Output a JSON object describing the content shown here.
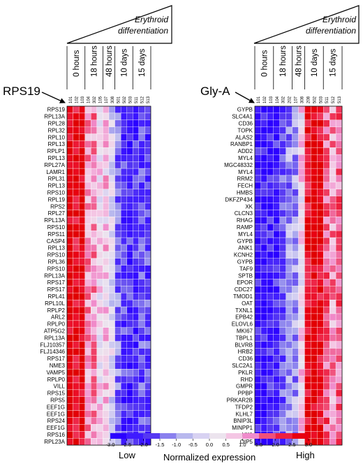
{
  "figure": {
    "triangle_label_line1": "Erythroid",
    "triangle_label_line2": "differentiation",
    "legend_low": "Low",
    "legend_high": "High",
    "legend_title": "Normalized expression"
  },
  "chart_data": [
    {
      "type": "heatmap",
      "marker_gene": "RPS19",
      "time_groups": [
        {
          "label": "0 hours",
          "columns": 3
        },
        {
          "label": "18 hours",
          "columns": 3
        },
        {
          "label": "48 hours",
          "columns": 2
        },
        {
          "label": "10 days",
          "columns": 3
        },
        {
          "label": "15 days",
          "columns": 3
        }
      ],
      "columns": [
        "101",
        "102",
        "103",
        "104",
        "302",
        "105",
        "107",
        "308",
        "501",
        "502",
        "503",
        "511",
        "512",
        "513"
      ],
      "rows": [
        "RPS19",
        "RPL13A",
        "RPL28",
        "RPL32",
        "RPL10",
        "RPL13",
        "RPLP1",
        "RPL13",
        "RPL27A",
        "LAMR1",
        "RPL31",
        "RPL13",
        "RPS10",
        "RPL19",
        "RPS2",
        "RPL27",
        "RPL13A",
        "RPS10",
        "RPS11",
        "CASP4",
        "RPL13",
        "RPS10",
        "RPL36",
        "RPS10",
        "RPL13A",
        "RPS17",
        "RPS17",
        "RPL41",
        "RPL10L",
        "RPLP2",
        "ARL2",
        "RPLP0",
        "ATP5G2",
        "RPL13A",
        "FLJ10357",
        "FLJ14346",
        "RPS17",
        "NME3",
        "VAMP5",
        "RPLP0",
        "VILL",
        "RPS15",
        "RPS5",
        "EEF1G",
        "EEF1G",
        "RPS24",
        "EEF1G",
        "RPS16",
        "RPL23A"
      ],
      "profile": [
        2.6,
        2.5,
        2.7,
        0.9,
        1.0,
        0.2,
        0.4,
        -0.5,
        -1.6,
        -2.2,
        -2.3,
        -2.3,
        -2.0,
        -2.1
      ],
      "value_range": [
        -3.0,
        3.0
      ]
    },
    {
      "type": "heatmap",
      "marker_gene": "Gly-A",
      "time_groups": [
        {
          "label": "0 hours",
          "columns": 3
        },
        {
          "label": "18 hours",
          "columns": 3
        },
        {
          "label": "48 hours",
          "columns": 2
        },
        {
          "label": "10 days",
          "columns": 3
        },
        {
          "label": "15 days",
          "columns": 3
        }
      ],
      "columns": [
        "101",
        "102",
        "103",
        "104",
        "302",
        "202",
        "107",
        "308",
        "208",
        "502",
        "503",
        "511",
        "512",
        "513"
      ],
      "rows": [
        "GYPB",
        "SLC4A1",
        "CD36",
        "TOPK",
        "ALAS2",
        "RANBP1",
        "ADD2",
        "MYL4",
        "MGC48332",
        "MYL4",
        "RRM2",
        "FECH",
        "HMBS",
        "DKFZP434",
        "XK",
        "CLCN3",
        "RHAG",
        "RAMP",
        "MYL4",
        "GYPB",
        "ANK1",
        "KCNH2",
        "GYPB",
        "TAF9",
        "SPTB",
        "EPOR",
        "CDC27",
        "TMOD1",
        "OAT",
        "TXNL1",
        "EPB42",
        "ELOVL6",
        "MKI67",
        "TBPL1",
        "BLVRB",
        "HRB2",
        "CD36",
        "SLC2A1",
        "PKLR",
        "RHD",
        "GMPR",
        "PPBP",
        "PRKAR2B",
        "TFDP2",
        "KLHL7",
        "BNIP3L",
        "MINPP1",
        "HK1",
        "OIP5"
      ],
      "profile": [
        -2.6,
        -2.6,
        -2.5,
        -2.4,
        -1.9,
        -1.3,
        -1.2,
        0.2,
        2.3,
        2.7,
        2.5,
        1.4,
        1.0,
        1.3
      ],
      "value_range": [
        -3.0,
        3.0
      ]
    }
  ],
  "color_scale": {
    "ticks": [
      "-3.0",
      "-2.5",
      "-2.0",
      "-1.5",
      "-1.0",
      "-0.5",
      "0.0",
      "0.5",
      "1.0",
      "1.5",
      "2.0",
      "2.5",
      "3.0"
    ],
    "colors": [
      "#2b00ff",
      "#3f1bff",
      "#5638f2",
      "#8a80ee",
      "#b8b8ee",
      "#d8d2f2",
      "#ece4ee",
      "#f4c6e4",
      "#f08ccc",
      "#f0507a",
      "#ee2040",
      "#e80010",
      "#e00000"
    ]
  }
}
